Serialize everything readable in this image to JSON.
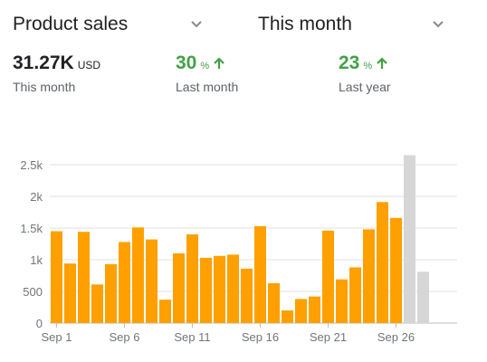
{
  "header": {
    "metric_label": "Product sales",
    "period_label": "This month"
  },
  "stats": {
    "current": {
      "value": "31.27K",
      "unit": "USD",
      "label": "This month"
    },
    "last_month": {
      "value": "30",
      "unit": "%",
      "label": "Last month",
      "trend": "up"
    },
    "last_year": {
      "value": "23",
      "unit": "%",
      "label": "Last year",
      "trend": "up"
    }
  },
  "colors": {
    "bar": "#ffa000",
    "bar_future": "#d6d6d6",
    "positive": "#43a047",
    "grid": "#e0e0e0"
  },
  "chart_data": {
    "type": "bar",
    "x_tick_labels": [
      "Sep 1",
      "Sep 6",
      "Sep 11",
      "Sep 16",
      "Sep 21",
      "Sep 26"
    ],
    "x_tick_days": [
      1,
      6,
      11,
      16,
      21,
      26
    ],
    "days": [
      1,
      2,
      3,
      4,
      5,
      6,
      7,
      8,
      9,
      10,
      11,
      12,
      13,
      14,
      15,
      16,
      17,
      18,
      19,
      20,
      21,
      22,
      23,
      24,
      25,
      26,
      27,
      28
    ],
    "values": [
      1450,
      940,
      1440,
      610,
      930,
      1280,
      1510,
      1320,
      370,
      1100,
      1400,
      1030,
      1060,
      1080,
      860,
      1530,
      630,
      200,
      380,
      420,
      1460,
      690,
      880,
      1480,
      1910,
      1660,
      2650,
      810
    ],
    "projected_from_day": 27,
    "y_ticks": [
      0,
      500,
      1000,
      1500,
      2000,
      2500
    ],
    "y_tick_labels": [
      "0",
      "500",
      "1k",
      "1.5k",
      "2k",
      "2.5k"
    ],
    "ylim": [
      0,
      2700
    ],
    "grid": true
  }
}
